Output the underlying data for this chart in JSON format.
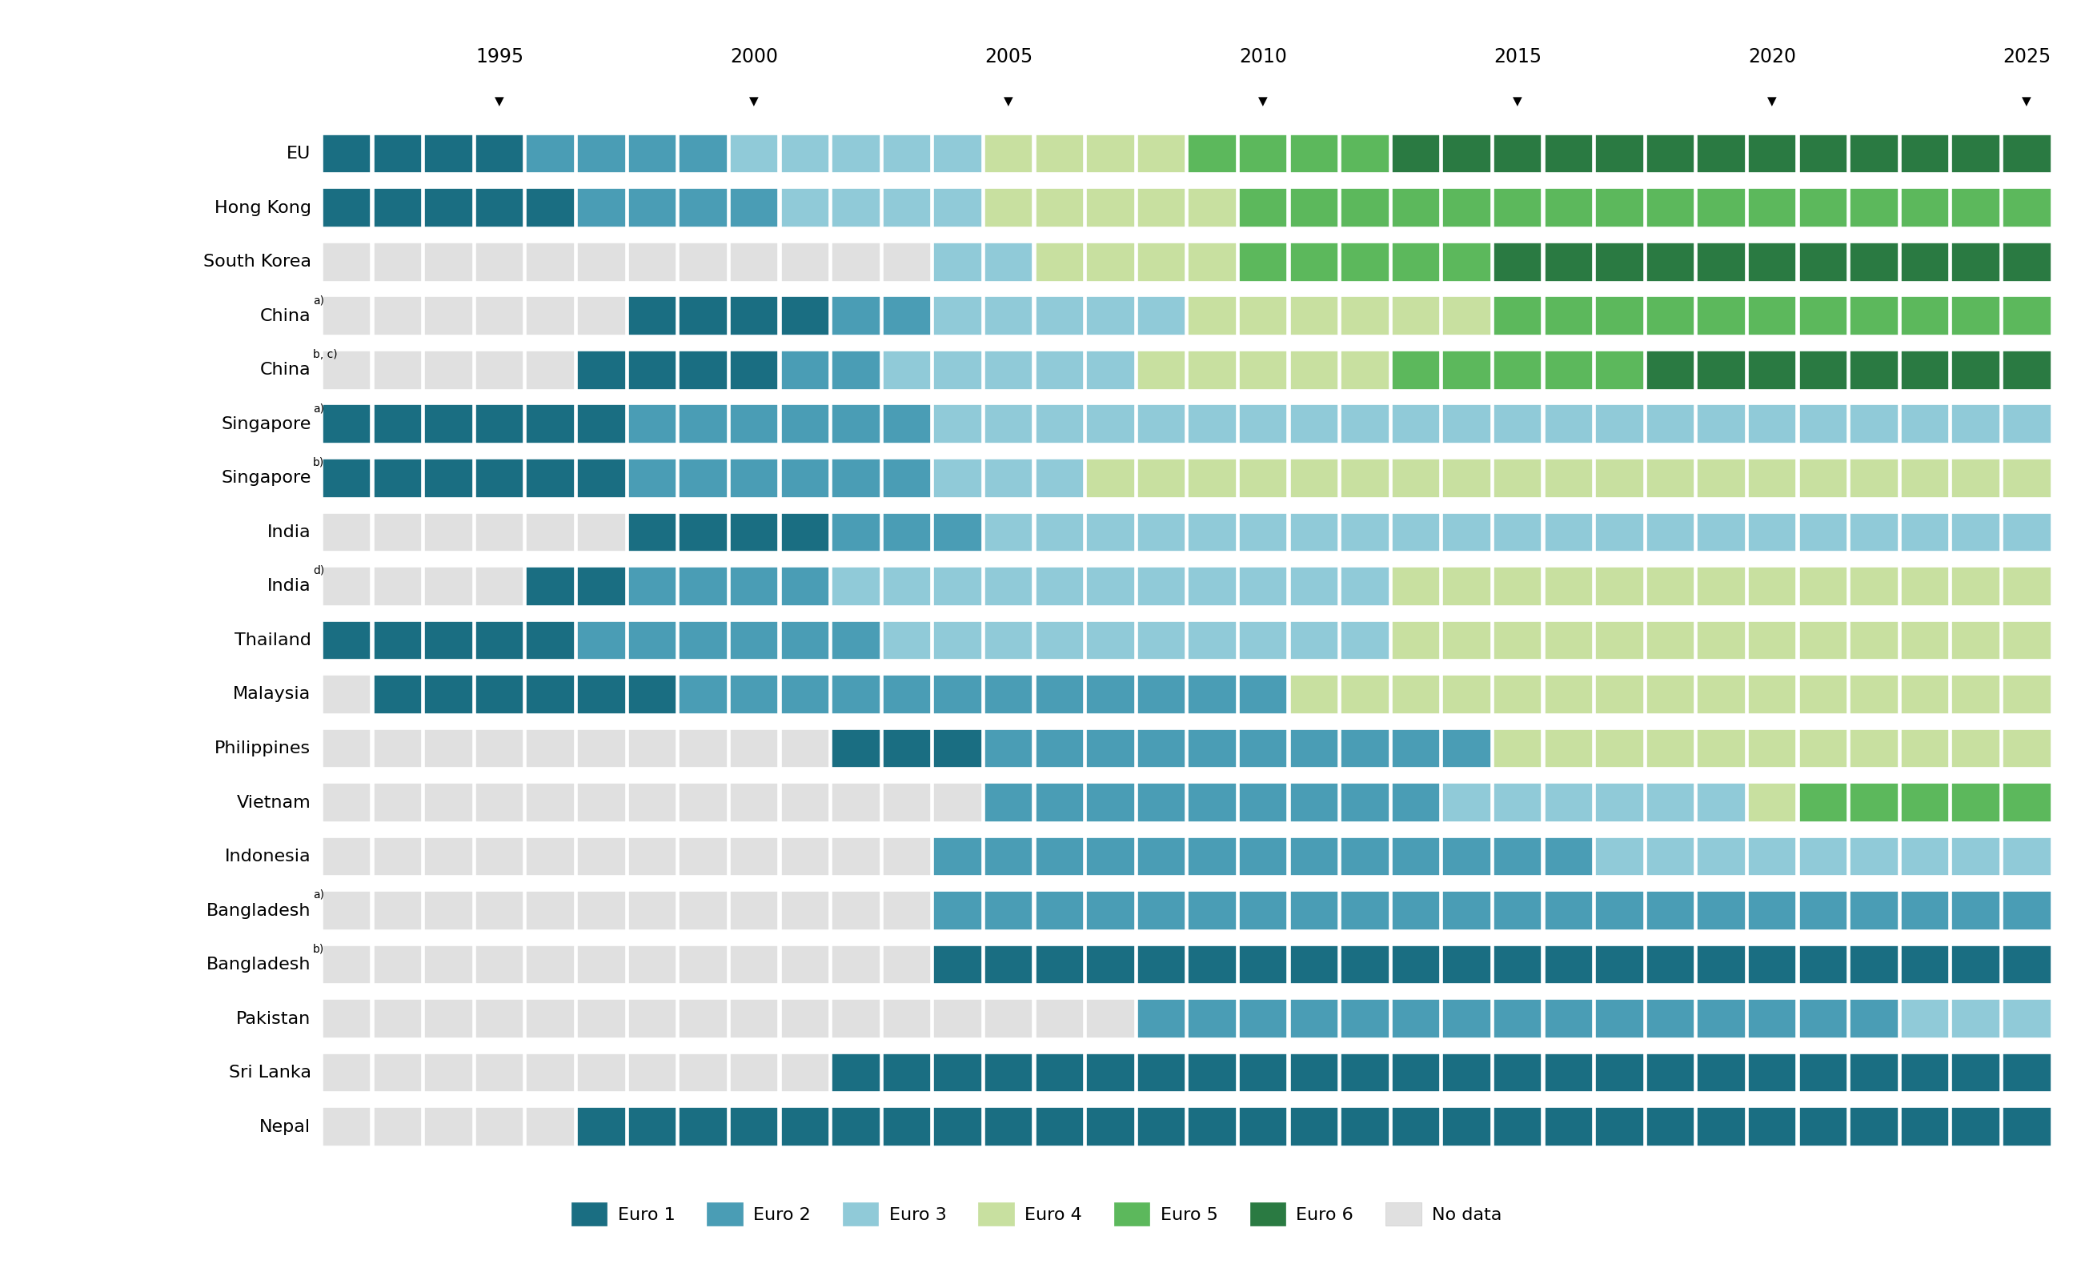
{
  "year_start": 1992,
  "year_end": 2025,
  "colors": {
    "Euro 1": "#1a6e82",
    "Euro 2": "#4a9db5",
    "Euro 3": "#90cad8",
    "Euro 4": "#c8e0a0",
    "Euro 5": "#5cb85c",
    "Euro 6": "#2a7a42",
    "No data": "#e0e0e0"
  },
  "arrow_years": [
    1995,
    2000,
    2005,
    2010,
    2015,
    2020,
    2025
  ],
  "rows": [
    {
      "label": "EU",
      "superscript": "",
      "data": {
        "1992": "Euro 1",
        "1993": "Euro 1",
        "1994": "Euro 1",
        "1995": "Euro 1",
        "1996": "Euro 2",
        "1997": "Euro 2",
        "1998": "Euro 2",
        "1999": "Euro 2",
        "2000": "Euro 3",
        "2001": "Euro 3",
        "2002": "Euro 3",
        "2003": "Euro 3",
        "2004": "Euro 3",
        "2005": "Euro 4",
        "2006": "Euro 4",
        "2007": "Euro 4",
        "2008": "Euro 4",
        "2009": "Euro 5",
        "2010": "Euro 5",
        "2011": "Euro 5",
        "2012": "Euro 5",
        "2013": "Euro 6",
        "2014": "Euro 6",
        "2015": "Euro 6",
        "2016": "Euro 6",
        "2017": "Euro 6",
        "2018": "Euro 6",
        "2019": "Euro 6",
        "2020": "Euro 6",
        "2021": "Euro 6",
        "2022": "Euro 6",
        "2023": "Euro 6",
        "2024": "Euro 6",
        "2025": "Euro 6"
      }
    },
    {
      "label": "Hong Kong",
      "superscript": "",
      "data": {
        "1992": "Euro 1",
        "1993": "Euro 1",
        "1994": "Euro 1",
        "1995": "Euro 1",
        "1996": "Euro 1",
        "1997": "Euro 2",
        "1998": "Euro 2",
        "1999": "Euro 2",
        "2000": "Euro 2",
        "2001": "Euro 3",
        "2002": "Euro 3",
        "2003": "Euro 3",
        "2004": "Euro 3",
        "2005": "Euro 4",
        "2006": "Euro 4",
        "2007": "Euro 4",
        "2008": "Euro 4",
        "2009": "Euro 4",
        "2010": "Euro 5",
        "2011": "Euro 5",
        "2012": "Euro 5",
        "2013": "Euro 5",
        "2014": "Euro 5",
        "2015": "Euro 5",
        "2016": "Euro 5",
        "2017": "Euro 5",
        "2018": "Euro 5",
        "2019": "Euro 5",
        "2020": "Euro 5",
        "2021": "Euro 5",
        "2022": "Euro 5",
        "2023": "Euro 5",
        "2024": "Euro 5",
        "2025": "Euro 5"
      }
    },
    {
      "label": "South Korea",
      "superscript": "",
      "data": {
        "1992": "No data",
        "1993": "No data",
        "1994": "No data",
        "1995": "No data",
        "1996": "No data",
        "1997": "No data",
        "1998": "No data",
        "1999": "No data",
        "2000": "No data",
        "2001": "No data",
        "2002": "No data",
        "2003": "No data",
        "2004": "Euro 3",
        "2005": "Euro 3",
        "2006": "Euro 4",
        "2007": "Euro 4",
        "2008": "Euro 4",
        "2009": "Euro 4",
        "2010": "Euro 5",
        "2011": "Euro 5",
        "2012": "Euro 5",
        "2013": "Euro 5",
        "2014": "Euro 5",
        "2015": "Euro 6",
        "2016": "Euro 6",
        "2017": "Euro 6",
        "2018": "Euro 6",
        "2019": "Euro 6",
        "2020": "Euro 6",
        "2021": "Euro 6",
        "2022": "Euro 6",
        "2023": "Euro 6",
        "2024": "Euro 6",
        "2025": "Euro 6"
      }
    },
    {
      "label": "China",
      "superscript": "a)",
      "data": {
        "1992": "No data",
        "1993": "No data",
        "1994": "No data",
        "1995": "No data",
        "1996": "No data",
        "1997": "No data",
        "1998": "Euro 1",
        "1999": "Euro 1",
        "2000": "Euro 1",
        "2001": "Euro 1",
        "2002": "Euro 2",
        "2003": "Euro 2",
        "2004": "Euro 3",
        "2005": "Euro 3",
        "2006": "Euro 3",
        "2007": "Euro 3",
        "2008": "Euro 3",
        "2009": "Euro 4",
        "2010": "Euro 4",
        "2011": "Euro 4",
        "2012": "Euro 4",
        "2013": "Euro 4",
        "2014": "Euro 4",
        "2015": "Euro 5",
        "2016": "Euro 5",
        "2017": "Euro 5",
        "2018": "Euro 5",
        "2019": "Euro 5",
        "2020": "Euro 5",
        "2021": "Euro 5",
        "2022": "Euro 5",
        "2023": "Euro 5",
        "2024": "Euro 5",
        "2025": "Euro 5"
      }
    },
    {
      "label": "China",
      "superscript": "b, c)",
      "data": {
        "1992": "No data",
        "1993": "No data",
        "1994": "No data",
        "1995": "No data",
        "1996": "No data",
        "1997": "Euro 1",
        "1998": "Euro 1",
        "1999": "Euro 1",
        "2000": "Euro 1",
        "2001": "Euro 2",
        "2002": "Euro 2",
        "2003": "Euro 3",
        "2004": "Euro 3",
        "2005": "Euro 3",
        "2006": "Euro 3",
        "2007": "Euro 3",
        "2008": "Euro 4",
        "2009": "Euro 4",
        "2010": "Euro 4",
        "2011": "Euro 4",
        "2012": "Euro 4",
        "2013": "Euro 5",
        "2014": "Euro 5",
        "2015": "Euro 5",
        "2016": "Euro 5",
        "2017": "Euro 5",
        "2018": "Euro 6",
        "2019": "Euro 6",
        "2020": "Euro 6",
        "2021": "Euro 6",
        "2022": "Euro 6",
        "2023": "Euro 6",
        "2024": "Euro 6",
        "2025": "Euro 6"
      }
    },
    {
      "label": "Singapore",
      "superscript": "a)",
      "data": {
        "1992": "Euro 1",
        "1993": "Euro 1",
        "1994": "Euro 1",
        "1995": "Euro 1",
        "1996": "Euro 1",
        "1997": "Euro 1",
        "1998": "Euro 2",
        "1999": "Euro 2",
        "2000": "Euro 2",
        "2001": "Euro 2",
        "2002": "Euro 2",
        "2003": "Euro 2",
        "2004": "Euro 3",
        "2005": "Euro 3",
        "2006": "Euro 3",
        "2007": "Euro 3",
        "2008": "Euro 3",
        "2009": "Euro 3",
        "2010": "Euro 3",
        "2011": "Euro 3",
        "2012": "Euro 3",
        "2013": "Euro 3",
        "2014": "Euro 3",
        "2015": "Euro 3",
        "2016": "Euro 3",
        "2017": "Euro 3",
        "2018": "Euro 3",
        "2019": "Euro 3",
        "2020": "Euro 3",
        "2021": "Euro 3",
        "2022": "Euro 3",
        "2023": "Euro 3",
        "2024": "Euro 3",
        "2025": "Euro 3"
      }
    },
    {
      "label": "Singapore",
      "superscript": "b)",
      "data": {
        "1992": "Euro 1",
        "1993": "Euro 1",
        "1994": "Euro 1",
        "1995": "Euro 1",
        "1996": "Euro 1",
        "1997": "Euro 1",
        "1998": "Euro 2",
        "1999": "Euro 2",
        "2000": "Euro 2",
        "2001": "Euro 2",
        "2002": "Euro 2",
        "2003": "Euro 2",
        "2004": "Euro 3",
        "2005": "Euro 3",
        "2006": "Euro 3",
        "2007": "Euro 4",
        "2008": "Euro 4",
        "2009": "Euro 4",
        "2010": "Euro 4",
        "2011": "Euro 4",
        "2012": "Euro 4",
        "2013": "Euro 4",
        "2014": "Euro 4",
        "2015": "Euro 4",
        "2016": "Euro 4",
        "2017": "Euro 4",
        "2018": "Euro 4",
        "2019": "Euro 4",
        "2020": "Euro 4",
        "2021": "Euro 4",
        "2022": "Euro 4",
        "2023": "Euro 4",
        "2024": "Euro 4",
        "2025": "Euro 4"
      }
    },
    {
      "label": "India",
      "superscript": "",
      "data": {
        "1992": "No data",
        "1993": "No data",
        "1994": "No data",
        "1995": "No data",
        "1996": "No data",
        "1997": "No data",
        "1998": "Euro 1",
        "1999": "Euro 1",
        "2000": "Euro 1",
        "2001": "Euro 1",
        "2002": "Euro 2",
        "2003": "Euro 2",
        "2004": "Euro 2",
        "2005": "Euro 3",
        "2006": "Euro 3",
        "2007": "Euro 3",
        "2008": "Euro 3",
        "2009": "Euro 3",
        "2010": "Euro 3",
        "2011": "Euro 3",
        "2012": "Euro 3",
        "2013": "Euro 3",
        "2014": "Euro 3",
        "2015": "Euro 3",
        "2016": "Euro 3",
        "2017": "Euro 3",
        "2018": "Euro 3",
        "2019": "Euro 3",
        "2020": "Euro 3",
        "2021": "Euro 3",
        "2022": "Euro 3",
        "2023": "Euro 3",
        "2024": "Euro 3",
        "2025": "Euro 3"
      }
    },
    {
      "label": "India",
      "superscript": "d)",
      "data": {
        "1992": "No data",
        "1993": "No data",
        "1994": "No data",
        "1995": "No data",
        "1996": "Euro 1",
        "1997": "Euro 1",
        "1998": "Euro 2",
        "1999": "Euro 2",
        "2000": "Euro 2",
        "2001": "Euro 2",
        "2002": "Euro 3",
        "2003": "Euro 3",
        "2004": "Euro 3",
        "2005": "Euro 3",
        "2006": "Euro 3",
        "2007": "Euro 3",
        "2008": "Euro 3",
        "2009": "Euro 3",
        "2010": "Euro 3",
        "2011": "Euro 3",
        "2012": "Euro 3",
        "2013": "Euro 4",
        "2014": "Euro 4",
        "2015": "Euro 4",
        "2016": "Euro 4",
        "2017": "Euro 4",
        "2018": "Euro 4",
        "2019": "Euro 4",
        "2020": "Euro 4",
        "2021": "Euro 4",
        "2022": "Euro 4",
        "2023": "Euro 4",
        "2024": "Euro 4",
        "2025": "Euro 4"
      }
    },
    {
      "label": "Thailand",
      "superscript": "",
      "data": {
        "1992": "Euro 1",
        "1993": "Euro 1",
        "1994": "Euro 1",
        "1995": "Euro 1",
        "1996": "Euro 1",
        "1997": "Euro 2",
        "1998": "Euro 2",
        "1999": "Euro 2",
        "2000": "Euro 2",
        "2001": "Euro 2",
        "2002": "Euro 2",
        "2003": "Euro 3",
        "2004": "Euro 3",
        "2005": "Euro 3",
        "2006": "Euro 3",
        "2007": "Euro 3",
        "2008": "Euro 3",
        "2009": "Euro 3",
        "2010": "Euro 3",
        "2011": "Euro 3",
        "2012": "Euro 3",
        "2013": "Euro 4",
        "2014": "Euro 4",
        "2015": "Euro 4",
        "2016": "Euro 4",
        "2017": "Euro 4",
        "2018": "Euro 4",
        "2019": "Euro 4",
        "2020": "Euro 4",
        "2021": "Euro 4",
        "2022": "Euro 4",
        "2023": "Euro 4",
        "2024": "Euro 4",
        "2025": "Euro 4"
      }
    },
    {
      "label": "Malaysia",
      "superscript": "",
      "data": {
        "1992": "No data",
        "1993": "Euro 1",
        "1994": "Euro 1",
        "1995": "Euro 1",
        "1996": "Euro 1",
        "1997": "Euro 1",
        "1998": "Euro 1",
        "1999": "Euro 2",
        "2000": "Euro 2",
        "2001": "Euro 2",
        "2002": "Euro 2",
        "2003": "Euro 2",
        "2004": "Euro 2",
        "2005": "Euro 2",
        "2006": "Euro 2",
        "2007": "Euro 2",
        "2008": "Euro 2",
        "2009": "Euro 2",
        "2010": "Euro 2",
        "2011": "Euro 4",
        "2012": "Euro 4",
        "2013": "Euro 4",
        "2014": "Euro 4",
        "2015": "Euro 4",
        "2016": "Euro 4",
        "2017": "Euro 4",
        "2018": "Euro 4",
        "2019": "Euro 4",
        "2020": "Euro 4",
        "2021": "Euro 4",
        "2022": "Euro 4",
        "2023": "Euro 4",
        "2024": "Euro 4",
        "2025": "Euro 4"
      }
    },
    {
      "label": "Philippines",
      "superscript": "",
      "data": {
        "1992": "No data",
        "1993": "No data",
        "1994": "No data",
        "1995": "No data",
        "1996": "No data",
        "1997": "No data",
        "1998": "No data",
        "1999": "No data",
        "2000": "No data",
        "2001": "No data",
        "2002": "Euro 1",
        "2003": "Euro 1",
        "2004": "Euro 1",
        "2005": "Euro 2",
        "2006": "Euro 2",
        "2007": "Euro 2",
        "2008": "Euro 2",
        "2009": "Euro 2",
        "2010": "Euro 2",
        "2011": "Euro 2",
        "2012": "Euro 2",
        "2013": "Euro 2",
        "2014": "Euro 2",
        "2015": "Euro 4",
        "2016": "Euro 4",
        "2017": "Euro 4",
        "2018": "Euro 4",
        "2019": "Euro 4",
        "2020": "Euro 4",
        "2021": "Euro 4",
        "2022": "Euro 4",
        "2023": "Euro 4",
        "2024": "Euro 4",
        "2025": "Euro 4"
      }
    },
    {
      "label": "Vietnam",
      "superscript": "",
      "data": {
        "1992": "No data",
        "1993": "No data",
        "1994": "No data",
        "1995": "No data",
        "1996": "No data",
        "1997": "No data",
        "1998": "No data",
        "1999": "No data",
        "2000": "No data",
        "2001": "No data",
        "2002": "No data",
        "2003": "No data",
        "2004": "No data",
        "2005": "Euro 2",
        "2006": "Euro 2",
        "2007": "Euro 2",
        "2008": "Euro 2",
        "2009": "Euro 2",
        "2010": "Euro 2",
        "2011": "Euro 2",
        "2012": "Euro 2",
        "2013": "Euro 2",
        "2014": "Euro 3",
        "2015": "Euro 3",
        "2016": "Euro 3",
        "2017": "Euro 3",
        "2018": "Euro 3",
        "2019": "Euro 3",
        "2020": "Euro 4",
        "2021": "Euro 5",
        "2022": "Euro 5",
        "2023": "Euro 5",
        "2024": "Euro 5",
        "2025": "Euro 5"
      }
    },
    {
      "label": "Indonesia",
      "superscript": "",
      "data": {
        "1992": "No data",
        "1993": "No data",
        "1994": "No data",
        "1995": "No data",
        "1996": "No data",
        "1997": "No data",
        "1998": "No data",
        "1999": "No data",
        "2000": "No data",
        "2001": "No data",
        "2002": "No data",
        "2003": "No data",
        "2004": "Euro 2",
        "2005": "Euro 2",
        "2006": "Euro 2",
        "2007": "Euro 2",
        "2008": "Euro 2",
        "2009": "Euro 2",
        "2010": "Euro 2",
        "2011": "Euro 2",
        "2012": "Euro 2",
        "2013": "Euro 2",
        "2014": "Euro 2",
        "2015": "Euro 2",
        "2016": "Euro 2",
        "2017": "Euro 3",
        "2018": "Euro 3",
        "2019": "Euro 3",
        "2020": "Euro 3",
        "2021": "Euro 3",
        "2022": "Euro 3",
        "2023": "Euro 3",
        "2024": "Euro 3",
        "2025": "Euro 3"
      }
    },
    {
      "label": "Bangladesh",
      "superscript": "a)",
      "data": {
        "1992": "No data",
        "1993": "No data",
        "1994": "No data",
        "1995": "No data",
        "1996": "No data",
        "1997": "No data",
        "1998": "No data",
        "1999": "No data",
        "2000": "No data",
        "2001": "No data",
        "2002": "No data",
        "2003": "No data",
        "2004": "Euro 2",
        "2005": "Euro 2",
        "2006": "Euro 2",
        "2007": "Euro 2",
        "2008": "Euro 2",
        "2009": "Euro 2",
        "2010": "Euro 2",
        "2011": "Euro 2",
        "2012": "Euro 2",
        "2013": "Euro 2",
        "2014": "Euro 2",
        "2015": "Euro 2",
        "2016": "Euro 2",
        "2017": "Euro 2",
        "2018": "Euro 2",
        "2019": "Euro 2",
        "2020": "Euro 2",
        "2021": "Euro 2",
        "2022": "Euro 2",
        "2023": "Euro 2",
        "2024": "Euro 2",
        "2025": "Euro 2"
      }
    },
    {
      "label": "Bangladesh",
      "superscript": "b)",
      "data": {
        "1992": "No data",
        "1993": "No data",
        "1994": "No data",
        "1995": "No data",
        "1996": "No data",
        "1997": "No data",
        "1998": "No data",
        "1999": "No data",
        "2000": "No data",
        "2001": "No data",
        "2002": "No data",
        "2003": "No data",
        "2004": "Euro 1",
        "2005": "Euro 1",
        "2006": "Euro 1",
        "2007": "Euro 1",
        "2008": "Euro 1",
        "2009": "Euro 1",
        "2010": "Euro 1",
        "2011": "Euro 1",
        "2012": "Euro 1",
        "2013": "Euro 1",
        "2014": "Euro 1",
        "2015": "Euro 1",
        "2016": "Euro 1",
        "2017": "Euro 1",
        "2018": "Euro 1",
        "2019": "Euro 1",
        "2020": "Euro 1",
        "2021": "Euro 1",
        "2022": "Euro 1",
        "2023": "Euro 1",
        "2024": "Euro 1",
        "2025": "Euro 1"
      }
    },
    {
      "label": "Pakistan",
      "superscript": "",
      "data": {
        "1992": "No data",
        "1993": "No data",
        "1994": "No data",
        "1995": "No data",
        "1996": "No data",
        "1997": "No data",
        "1998": "No data",
        "1999": "No data",
        "2000": "No data",
        "2001": "No data",
        "2002": "No data",
        "2003": "No data",
        "2004": "No data",
        "2005": "No data",
        "2006": "No data",
        "2007": "No data",
        "2008": "Euro 2",
        "2009": "Euro 2",
        "2010": "Euro 2",
        "2011": "Euro 2",
        "2012": "Euro 2",
        "2013": "Euro 2",
        "2014": "Euro 2",
        "2015": "Euro 2",
        "2016": "Euro 2",
        "2017": "Euro 2",
        "2018": "Euro 2",
        "2019": "Euro 2",
        "2020": "Euro 2",
        "2021": "Euro 2",
        "2022": "Euro 2",
        "2023": "Euro 3",
        "2024": "Euro 3",
        "2025": "Euro 3"
      }
    },
    {
      "label": "Sri Lanka",
      "superscript": "",
      "data": {
        "1992": "No data",
        "1993": "No data",
        "1994": "No data",
        "1995": "No data",
        "1996": "No data",
        "1997": "No data",
        "1998": "No data",
        "1999": "No data",
        "2000": "No data",
        "2001": "No data",
        "2002": "Euro 1",
        "2003": "Euro 1",
        "2004": "Euro 1",
        "2005": "Euro 1",
        "2006": "Euro 1",
        "2007": "Euro 1",
        "2008": "Euro 1",
        "2009": "Euro 1",
        "2010": "Euro 1",
        "2011": "Euro 1",
        "2012": "Euro 1",
        "2013": "Euro 1",
        "2014": "Euro 1",
        "2015": "Euro 1",
        "2016": "Euro 1",
        "2017": "Euro 1",
        "2018": "Euro 1",
        "2019": "Euro 1",
        "2020": "Euro 1",
        "2021": "Euro 1",
        "2022": "Euro 1",
        "2023": "Euro 1",
        "2024": "Euro 1",
        "2025": "Euro 1"
      }
    },
    {
      "label": "Nepal",
      "superscript": "",
      "data": {
        "1992": "No data",
        "1993": "No data",
        "1994": "No data",
        "1995": "No data",
        "1996": "No data",
        "1997": "Euro 1",
        "1998": "Euro 1",
        "1999": "Euro 1",
        "2000": "Euro 1",
        "2001": "Euro 1",
        "2002": "Euro 1",
        "2003": "Euro 1",
        "2004": "Euro 1",
        "2005": "Euro 1",
        "2006": "Euro 1",
        "2007": "Euro 1",
        "2008": "Euro 1",
        "2009": "Euro 1",
        "2010": "Euro 1",
        "2011": "Euro 1",
        "2012": "Euro 1",
        "2013": "Euro 1",
        "2014": "Euro 1",
        "2015": "Euro 1",
        "2016": "Euro 1",
        "2017": "Euro 1",
        "2018": "Euro 1",
        "2019": "Euro 1",
        "2020": "Euro 1",
        "2021": "Euro 1",
        "2022": "Euro 1",
        "2023": "Euro 1",
        "2024": "Euro 1",
        "2025": "Euro 1"
      }
    }
  ],
  "legend_order": [
    "Euro 1",
    "Euro 2",
    "Euro 3",
    "Euro 4",
    "Euro 5",
    "Euro 6",
    "No data"
  ],
  "background_color": "#ffffff",
  "label_fontsize": 16,
  "sup_fontsize": 10,
  "year_fontsize": 17,
  "legend_fontsize": 16
}
